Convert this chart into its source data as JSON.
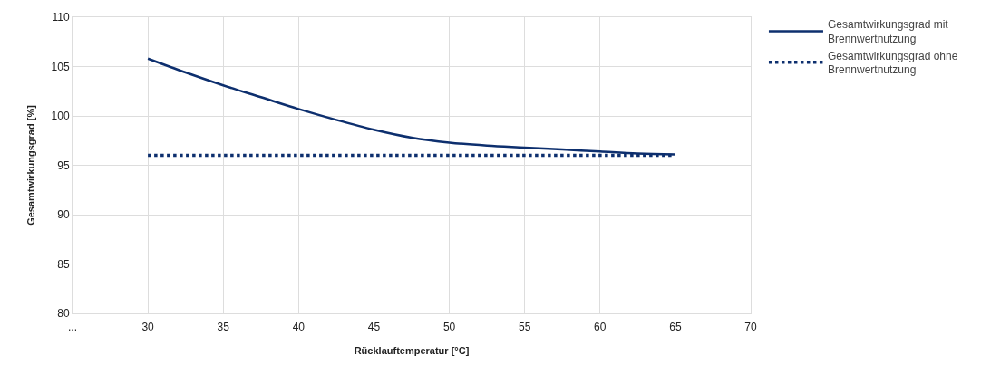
{
  "chart_data": {
    "type": "line",
    "xlabel": "Rücklauftemperatur [°C]",
    "ylabel": "Gesamtwirkungsgrad [%]",
    "xlim": [
      25,
      70
    ],
    "xticks": [
      {
        "value": 25,
        "label": "..."
      },
      30,
      35,
      40,
      45,
      50,
      55,
      60,
      65,
      70
    ],
    "ylim": [
      80,
      110
    ],
    "yticks": [
      80,
      85,
      90,
      95,
      100,
      105,
      110
    ],
    "grid": true,
    "legend": "top right",
    "series": [
      {
        "name": "Gesamtwirkungsgrad mit Brennwertnutzung",
        "color": "#0d2f6e",
        "line_style": "solid",
        "x": [
          30,
          32.5,
          35,
          37.5,
          40,
          42.5,
          45,
          47.5,
          50,
          52.5,
          55,
          57.5,
          60,
          62.5,
          65
        ],
        "values": [
          105.8,
          104.4,
          103.1,
          101.9,
          100.7,
          99.6,
          98.6,
          97.8,
          97.3,
          97.0,
          96.8,
          96.6,
          96.4,
          96.2,
          96.1
        ]
      },
      {
        "name": "Gesamtwirkungsgrad ohne Brennwertnutzung",
        "color": "#0d2f6e",
        "line_style": "dotted",
        "x": [
          30,
          65
        ],
        "values": [
          96,
          96
        ]
      }
    ]
  }
}
